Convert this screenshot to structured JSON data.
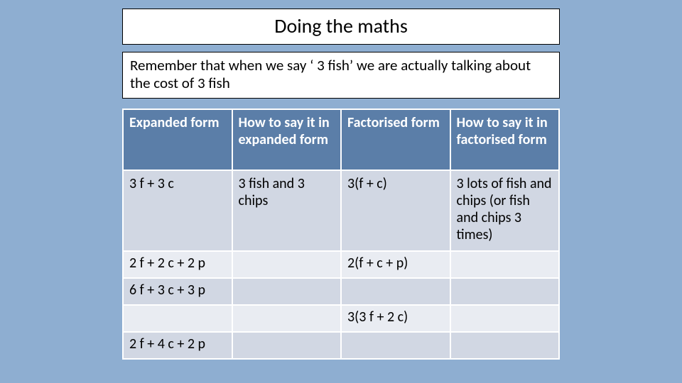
{
  "title": "Doing the maths",
  "subtitle": "Remember that when we say ‘ 3 fish’ we are actually talking about the cost of 3 fish",
  "table": {
    "headers": [
      "Expanded form",
      "How to say it in expanded form",
      "Factorised form",
      "How to say it in factorised form"
    ],
    "rows": [
      [
        "3 f + 3 c",
        "3 fish and 3 chips",
        "3(f + c)",
        "3 lots of fish and chips (or fish and chips 3 times)"
      ],
      [
        "2 f + 2 c + 2 p",
        "",
        "2(f + c + p)",
        ""
      ],
      [
        "6 f + 3 c + 3 p",
        "",
        "",
        ""
      ],
      [
        "",
        "",
        "3(3 f + 2 c)",
        ""
      ],
      [
        "2 f + 4 c + 2 p",
        "",
        "",
        ""
      ]
    ],
    "header_bg": "#5b7ea8",
    "header_text_color": "#ffffff",
    "row_odd_bg": "#d1d7e3",
    "row_even_bg": "#e9ecf2",
    "border_color": "#ffffff",
    "page_bg": "#8eaed1"
  }
}
